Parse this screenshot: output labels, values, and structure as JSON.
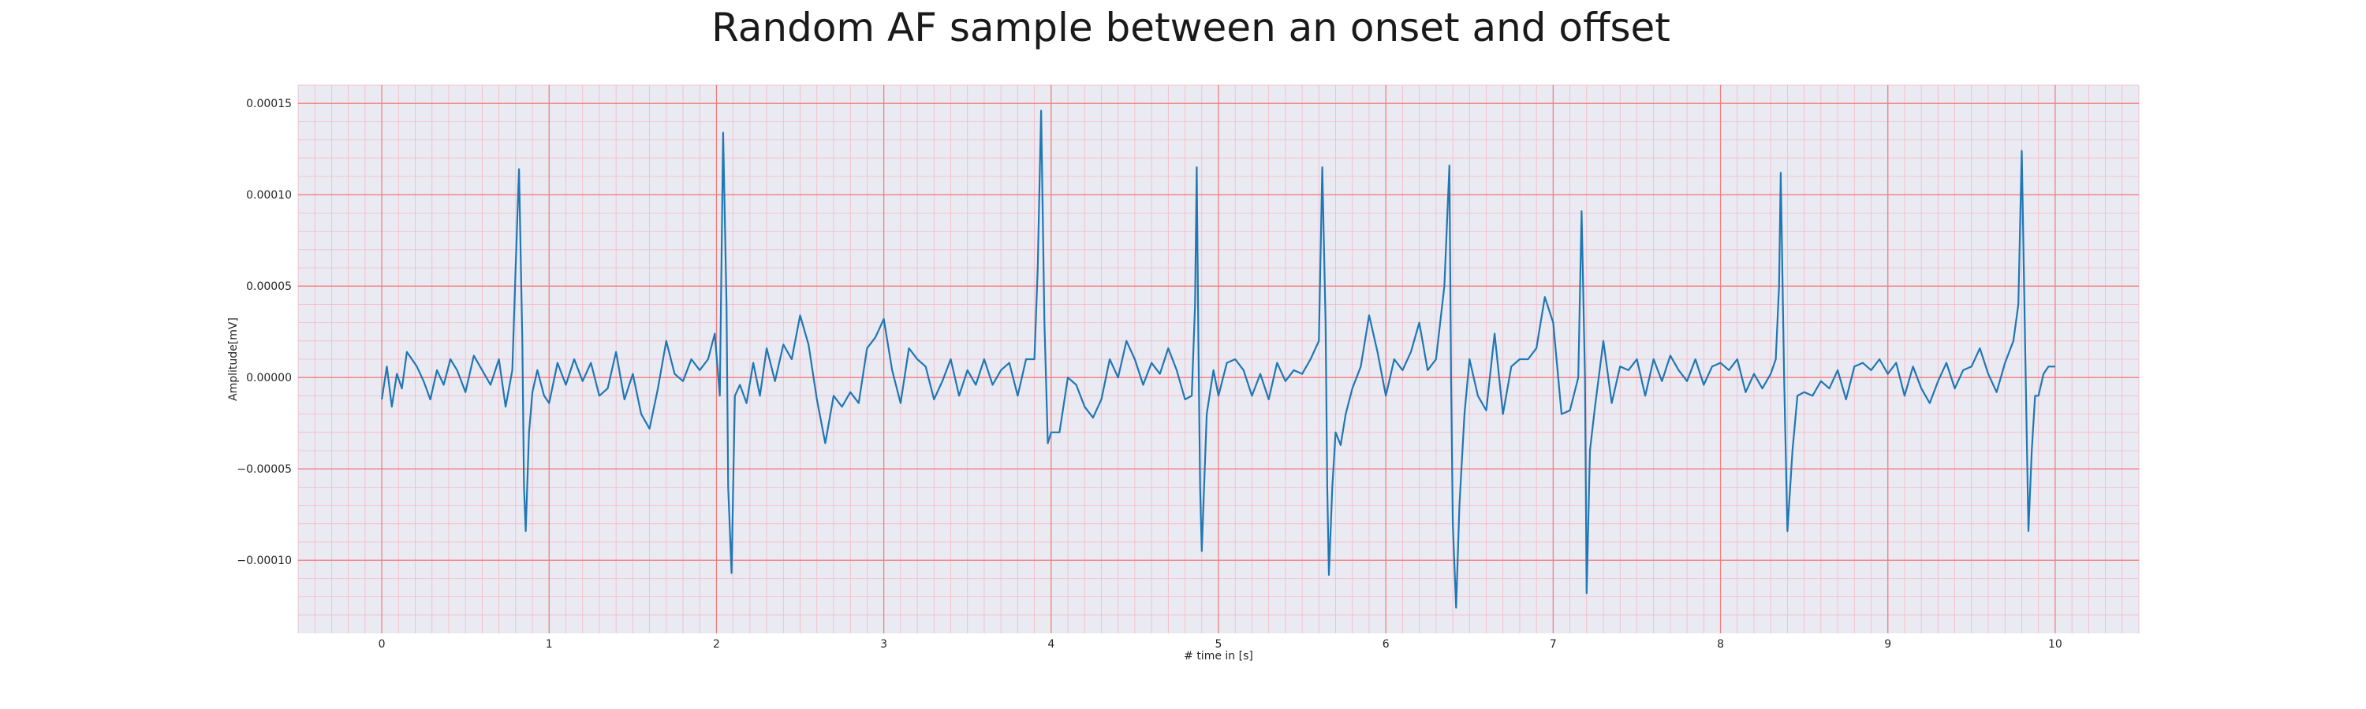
{
  "chart_data": {
    "type": "line",
    "title": "Random AF sample between an onset and offset",
    "xlabel": "# time in [s]",
    "ylabel": "Amplitude[mV]",
    "xlim": [
      -0.5,
      10.5
    ],
    "ylim": [
      -0.00014,
      0.00016
    ],
    "x_ticks": [
      0,
      1,
      2,
      3,
      4,
      5,
      6,
      7,
      8,
      9,
      10
    ],
    "x_tick_labels": [
      "0",
      "1",
      "2",
      "3",
      "4",
      "5",
      "6",
      "7",
      "8",
      "9",
      "10"
    ],
    "y_ticks": [
      -0.0001,
      -5e-05,
      0,
      5e-05,
      0.0001,
      0.00015
    ],
    "y_tick_labels": [
      "−0.00010",
      "−0.00005",
      "0.00000",
      "0.00005",
      "0.00010",
      "0.00015"
    ],
    "grid": true,
    "minor_grid": true,
    "background_color": "#eaeaf2",
    "major_grid_color": "#f08080",
    "minor_grid_color": "#f5b8c4",
    "series": [
      {
        "color": "#1f77b4",
        "x": [
          0.0,
          0.03,
          0.06,
          0.09,
          0.12,
          0.15,
          0.18,
          0.21,
          0.25,
          0.29,
          0.33,
          0.37,
          0.41,
          0.45,
          0.5,
          0.55,
          0.6,
          0.65,
          0.7,
          0.74,
          0.78,
          0.8,
          0.82,
          0.84,
          0.85,
          0.86,
          0.88,
          0.9,
          0.93,
          0.97,
          1.0,
          1.05,
          1.1,
          1.15,
          1.2,
          1.25,
          1.3,
          1.35,
          1.4,
          1.45,
          1.5,
          1.55,
          1.6,
          1.65,
          1.7,
          1.75,
          1.8,
          1.85,
          1.9,
          1.95,
          1.99,
          2.02,
          2.04,
          2.06,
          2.07,
          2.09,
          2.11,
          2.14,
          2.18,
          2.22,
          2.26,
          2.3,
          2.35,
          2.4,
          2.45,
          2.5,
          2.55,
          2.6,
          2.65,
          2.7,
          2.75,
          2.8,
          2.85,
          2.9,
          2.95,
          3.0,
          3.05,
          3.1,
          3.15,
          3.2,
          3.25,
          3.3,
          3.35,
          3.4,
          3.45,
          3.5,
          3.55,
          3.6,
          3.65,
          3.7,
          3.75,
          3.8,
          3.85,
          3.9,
          3.92,
          3.94,
          3.96,
          3.98,
          4.0,
          4.05,
          4.1,
          4.15,
          4.2,
          4.25,
          4.3,
          4.35,
          4.4,
          4.45,
          4.5,
          4.55,
          4.6,
          4.65,
          4.7,
          4.75,
          4.8,
          4.84,
          4.86,
          4.87,
          4.88,
          4.89,
          4.9,
          4.93,
          4.97,
          5.0,
          5.05,
          5.1,
          5.15,
          5.2,
          5.25,
          5.3,
          5.35,
          5.4,
          5.45,
          5.5,
          5.55,
          5.6,
          5.62,
          5.64,
          5.65,
          5.66,
          5.68,
          5.7,
          5.73,
          5.76,
          5.8,
          5.85,
          5.9,
          5.95,
          6.0,
          6.05,
          6.1,
          6.15,
          6.2,
          6.25,
          6.3,
          6.35,
          6.38,
          6.39,
          6.4,
          6.42,
          6.44,
          6.47,
          6.5,
          6.55,
          6.6,
          6.65,
          6.7,
          6.75,
          6.8,
          6.85,
          6.9,
          6.95,
          7.0,
          7.05,
          7.1,
          7.15,
          7.17,
          7.19,
          7.2,
          7.22,
          7.25,
          7.3,
          7.35,
          7.4,
          7.45,
          7.5,
          7.55,
          7.6,
          7.65,
          7.7,
          7.75,
          7.8,
          7.85,
          7.9,
          7.95,
          8.0,
          8.05,
          8.1,
          8.15,
          8.2,
          8.25,
          8.3,
          8.33,
          8.35,
          8.36,
          8.38,
          8.4,
          8.43,
          8.46,
          8.5,
          8.55,
          8.6,
          8.65,
          8.7,
          8.75,
          8.8,
          8.85,
          8.9,
          8.95,
          9.0,
          9.05,
          9.1,
          9.15,
          9.2,
          9.25,
          9.3,
          9.35,
          9.4,
          9.45,
          9.5,
          9.55,
          9.6,
          9.65,
          9.7,
          9.75,
          9.78,
          9.8,
          9.82,
          9.84,
          9.86,
          9.88,
          9.9,
          9.93,
          9.96,
          10.0
        ],
        "y": [
          -1.2e-05,
          6e-06,
          -1.6e-05,
          2e-06,
          -6e-06,
          1.4e-05,
          1e-05,
          6e-06,
          -2e-06,
          -1.2e-05,
          4e-06,
          -4e-06,
          1e-05,
          4e-06,
          -8e-06,
          1.2e-05,
          4e-06,
          -4e-06,
          1e-05,
          -1.6e-05,
          4e-06,
          6e-05,
          0.000114,
          2e-05,
          -6e-05,
          -8.4e-05,
          -3e-05,
          -8e-06,
          4e-06,
          -1e-05,
          -1.4e-05,
          8e-06,
          -4e-06,
          1e-05,
          -2e-06,
          8e-06,
          -1e-05,
          -6e-06,
          1.4e-05,
          -1.2e-05,
          2e-06,
          -2e-05,
          -2.8e-05,
          -6e-06,
          2e-05,
          2e-06,
          -2e-06,
          1e-05,
          4e-06,
          1e-05,
          2.4e-05,
          -1e-05,
          0.000134,
          4e-05,
          -6e-05,
          -0.000107,
          -1e-05,
          -4e-06,
          -1.4e-05,
          8e-06,
          -1e-05,
          1.6e-05,
          -2e-06,
          1.8e-05,
          1e-05,
          3.4e-05,
          1.8e-05,
          -1.2e-05,
          -3.6e-05,
          -1e-05,
          -1.6e-05,
          -8e-06,
          -1.4e-05,
          1.6e-05,
          2.2e-05,
          3.2e-05,
          4e-06,
          -1.4e-05,
          1.6e-05,
          1e-05,
          6e-06,
          -1.2e-05,
          -2e-06,
          1e-05,
          -1e-05,
          4e-06,
          -4e-06,
          1e-05,
          -4e-06,
          4e-06,
          8e-06,
          -1e-05,
          1e-05,
          1e-05,
          6e-05,
          0.000146,
          3e-05,
          -3.6e-05,
          -3e-05,
          -3e-05,
          0.0,
          -4e-06,
          -1.6e-05,
          -2.2e-05,
          -1.2e-05,
          1e-05,
          0.0,
          2e-05,
          1e-05,
          -4e-06,
          8e-06,
          2e-06,
          1.6e-05,
          4e-06,
          -1.2e-05,
          -1e-05,
          4e-05,
          0.000115,
          2e-05,
          -6e-05,
          -9.5e-05,
          -2e-05,
          4e-06,
          -1e-05,
          8e-06,
          1e-05,
          4e-06,
          -1e-05,
          2e-06,
          -1.2e-05,
          8e-06,
          -2e-06,
          4e-06,
          2e-06,
          1e-05,
          2e-05,
          0.000115,
          3e-05,
          -6e-05,
          -0.000108,
          -6e-05,
          -3e-05,
          -3.7e-05,
          -2e-05,
          -6e-06,
          6e-06,
          3.4e-05,
          1.4e-05,
          -1e-05,
          1e-05,
          4e-06,
          1.4e-05,
          3e-05,
          4e-06,
          1e-05,
          5e-05,
          0.000116,
          0.0,
          -8e-05,
          -0.000126,
          -7e-05,
          -2e-05,
          1e-05,
          -1e-05,
          -1.8e-05,
          2.4e-05,
          -2e-05,
          6e-06,
          1e-05,
          1e-05,
          1.6e-05,
          4.4e-05,
          3e-05,
          -2e-05,
          -1.8e-05,
          0.0,
          9.1e-05,
          0.0,
          -0.000118,
          -4e-05,
          -1.6e-05,
          2e-05,
          -1.4e-05,
          6e-06,
          4e-06,
          1e-05,
          -1e-05,
          1e-05,
          -2e-06,
          1.2e-05,
          4e-06,
          -2e-06,
          1e-05,
          -4e-06,
          6e-06,
          8e-06,
          4e-06,
          1e-05,
          -8e-06,
          2e-06,
          -6e-06,
          2e-06,
          1e-05,
          5e-05,
          0.000112,
          0.0,
          -8.4e-05,
          -4e-05,
          -1e-05,
          -8e-06,
          -1e-05,
          -2e-06,
          -6e-06,
          4e-06,
          -1.2e-05,
          6e-06,
          8e-06,
          4e-06,
          1e-05,
          2e-06,
          8e-06,
          -1e-05,
          6e-06,
          -6e-06,
          -1.4e-05,
          -2e-06,
          8e-06,
          -6e-06,
          4e-06,
          6e-06,
          1.6e-05,
          2e-06,
          -8e-06,
          8e-06,
          2e-05,
          4e-05,
          0.000124,
          2e-05,
          -8.4e-05,
          -4e-05,
          -1e-05,
          -1e-05,
          2e-06,
          6e-06,
          6e-06
        ]
      }
    ]
  }
}
